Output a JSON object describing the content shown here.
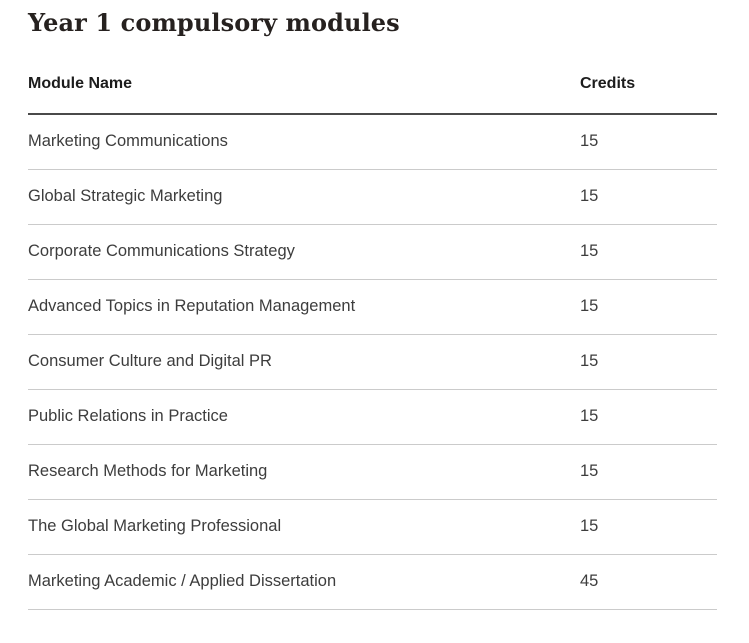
{
  "page": {
    "title": "Year 1 compulsory modules"
  },
  "table": {
    "headers": {
      "module": "Module Name",
      "credits": "Credits"
    },
    "rows": [
      {
        "module": "Marketing Communications",
        "credits": "15"
      },
      {
        "module": "Global Strategic Marketing",
        "credits": "15"
      },
      {
        "module": "Corporate Communications Strategy",
        "credits": "15"
      },
      {
        "module": "Advanced Topics in Reputation Management",
        "credits": "15"
      },
      {
        "module": "Consumer Culture and Digital PR",
        "credits": "15"
      },
      {
        "module": "Public Relations in Practice",
        "credits": "15"
      },
      {
        "module": "Research Methods for Marketing",
        "credits": "15"
      },
      {
        "module": "The Global Marketing Professional",
        "credits": "15"
      },
      {
        "module": "Marketing Academic / Applied Dissertation",
        "credits": "45"
      }
    ]
  },
  "colors": {
    "background": "#ffffff",
    "title_text": "#26211f",
    "header_text": "#1c1c1c",
    "body_text": "#3d3d3d",
    "header_rule": "#4a4a4a",
    "row_rule": "#cbcbcb"
  }
}
